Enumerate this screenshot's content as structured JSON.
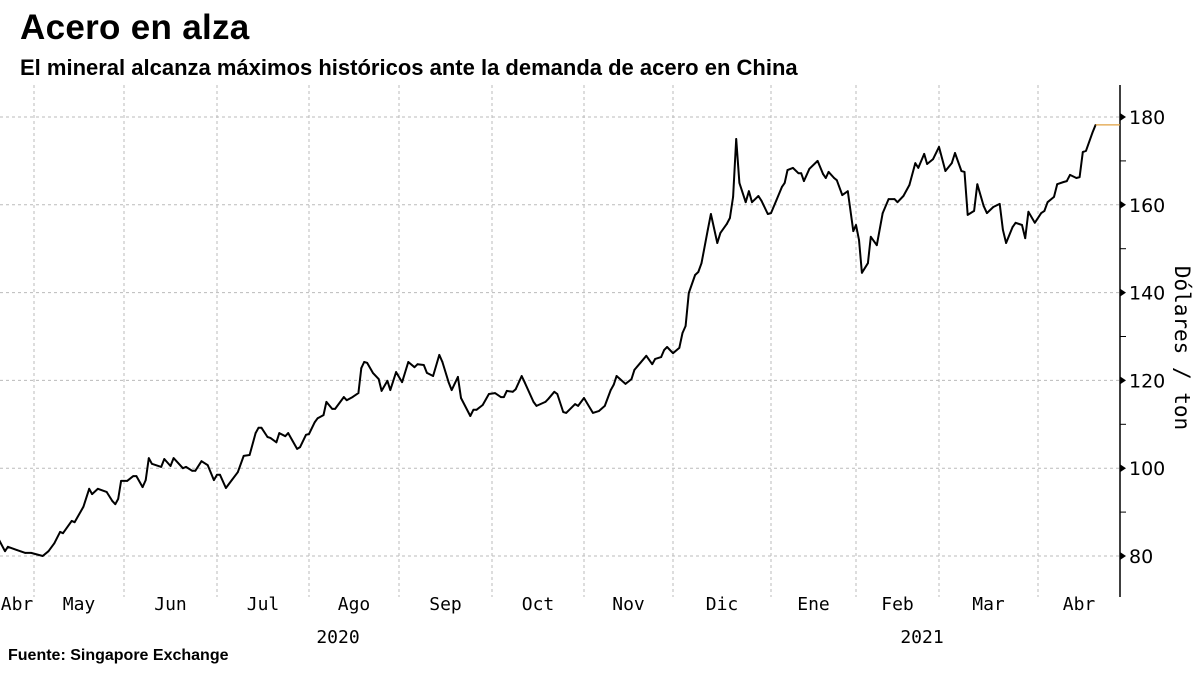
{
  "title": "Acero en alza",
  "subtitle": "El mineral alcanza máximos históricos ante la demanda de acero en China",
  "source": "Fuente: Singapore Exchange",
  "colors": {
    "line": "#000000",
    "last_value_marker": "#e0a040",
    "grid": "#bbbbbb"
  },
  "chart_data": {
    "type": "line",
    "title": "Acero en alza",
    "ylabel": "Dólares / ton",
    "xlabel": "",
    "y_axis_position": "right",
    "ylim": [
      70,
      190
    ],
    "yticks": [
      80,
      100,
      120,
      140,
      160,
      180
    ],
    "xtick_labels": [
      "Abr",
      "May",
      "Jun",
      "Jul",
      "Ago",
      "Sep",
      "Oct",
      "Nov",
      "Dic",
      "Ene",
      "Feb",
      "Mar",
      "Abr"
    ],
    "year_labels": [
      "2020",
      "2021"
    ],
    "grid": true,
    "series": [
      {
        "points": [
          [
            "2020-04-19",
            83.6
          ],
          [
            "2020-04-21",
            81.1
          ],
          [
            "2020-04-22",
            82.1
          ],
          [
            "2020-04-25",
            81.4
          ],
          [
            "2020-04-28",
            80.7
          ],
          [
            "2020-04-30",
            80.7
          ],
          [
            "2020-05-04",
            80.0
          ],
          [
            "2020-05-06",
            81.1
          ],
          [
            "2020-05-08",
            82.9
          ],
          [
            "2020-05-10",
            85.5
          ],
          [
            "2020-05-11",
            85.2
          ],
          [
            "2020-05-14",
            88.0
          ],
          [
            "2020-05-15",
            87.7
          ],
          [
            "2020-05-18",
            91.2
          ],
          [
            "2020-05-20",
            95.3
          ],
          [
            "2020-05-21",
            94.1
          ],
          [
            "2020-05-23",
            95.3
          ],
          [
            "2020-05-26",
            94.6
          ],
          [
            "2020-05-28",
            92.5
          ],
          [
            "2020-05-29",
            91.8
          ],
          [
            "2020-05-30",
            93.0
          ],
          [
            "2020-05-31",
            97.1
          ],
          [
            "2020-06-02",
            97.1
          ],
          [
            "2020-06-04",
            98.2
          ],
          [
            "2020-06-05",
            98.2
          ],
          [
            "2020-06-07",
            95.7
          ],
          [
            "2020-06-08",
            97.3
          ],
          [
            "2020-06-09",
            102.3
          ],
          [
            "2020-06-10",
            101.0
          ],
          [
            "2020-06-13",
            100.3
          ],
          [
            "2020-06-14",
            102.1
          ],
          [
            "2020-06-16",
            100.5
          ],
          [
            "2020-06-17",
            102.3
          ],
          [
            "2020-06-20",
            100.0
          ],
          [
            "2020-06-21",
            100.3
          ],
          [
            "2020-06-23",
            99.4
          ],
          [
            "2020-06-24",
            99.4
          ],
          [
            "2020-06-26",
            101.6
          ],
          [
            "2020-06-28",
            100.7
          ],
          [
            "2020-06-30",
            97.3
          ],
          [
            "2020-07-01",
            98.5
          ],
          [
            "2020-07-02",
            98.5
          ],
          [
            "2020-07-04",
            95.5
          ],
          [
            "2020-07-06",
            97.3
          ],
          [
            "2020-07-08",
            99.1
          ],
          [
            "2020-07-10",
            102.8
          ],
          [
            "2020-07-12",
            103.0
          ],
          [
            "2020-07-14",
            108.0
          ],
          [
            "2020-07-15",
            109.2
          ],
          [
            "2020-07-16",
            109.2
          ],
          [
            "2020-07-18",
            107.1
          ],
          [
            "2020-07-19",
            106.9
          ],
          [
            "2020-07-21",
            105.9
          ],
          [
            "2020-07-22",
            108.0
          ],
          [
            "2020-07-24",
            107.3
          ],
          [
            "2020-07-25",
            108.0
          ],
          [
            "2020-07-28",
            104.4
          ],
          [
            "2020-07-29",
            104.8
          ],
          [
            "2020-07-31",
            107.6
          ],
          [
            "2020-08-01",
            107.8
          ],
          [
            "2020-08-03",
            110.5
          ],
          [
            "2020-08-04",
            111.4
          ],
          [
            "2020-08-06",
            112.1
          ],
          [
            "2020-08-07",
            115.1
          ],
          [
            "2020-08-09",
            113.5
          ],
          [
            "2020-08-10",
            113.5
          ],
          [
            "2020-08-13",
            116.2
          ],
          [
            "2020-08-14",
            115.5
          ],
          [
            "2020-08-16",
            116.2
          ],
          [
            "2020-08-18",
            117.1
          ],
          [
            "2020-08-19",
            122.8
          ],
          [
            "2020-08-20",
            124.2
          ],
          [
            "2020-08-21",
            124.0
          ],
          [
            "2020-08-23",
            121.7
          ],
          [
            "2020-08-25",
            120.3
          ],
          [
            "2020-08-26",
            117.6
          ],
          [
            "2020-08-28",
            119.9
          ],
          [
            "2020-08-29",
            117.8
          ],
          [
            "2020-08-31",
            121.9
          ],
          [
            "2020-09-02",
            119.6
          ],
          [
            "2020-09-04",
            124.2
          ],
          [
            "2020-09-06",
            123.0
          ],
          [
            "2020-09-07",
            123.7
          ],
          [
            "2020-09-09",
            123.5
          ],
          [
            "2020-09-10",
            121.7
          ],
          [
            "2020-09-12",
            121.0
          ],
          [
            "2020-09-14",
            125.8
          ],
          [
            "2020-09-15",
            124.2
          ],
          [
            "2020-09-17",
            119.6
          ],
          [
            "2020-09-18",
            117.8
          ],
          [
            "2020-09-20",
            120.8
          ],
          [
            "2020-09-21",
            116.0
          ],
          [
            "2020-09-24",
            111.9
          ],
          [
            "2020-09-25",
            113.3
          ],
          [
            "2020-09-26",
            113.3
          ],
          [
            "2020-09-28",
            114.4
          ],
          [
            "2020-09-30",
            116.9
          ],
          [
            "2020-10-02",
            117.1
          ],
          [
            "2020-10-04",
            116.2
          ],
          [
            "2020-10-05",
            116.2
          ],
          [
            "2020-10-06",
            117.6
          ],
          [
            "2020-10-08",
            117.4
          ],
          [
            "2020-10-09",
            118.0
          ],
          [
            "2020-10-11",
            121.0
          ],
          [
            "2020-10-12",
            119.6
          ],
          [
            "2020-10-15",
            115.1
          ],
          [
            "2020-10-16",
            114.2
          ],
          [
            "2020-10-19",
            115.1
          ],
          [
            "2020-10-20",
            115.8
          ],
          [
            "2020-10-22",
            117.4
          ],
          [
            "2020-10-23",
            116.9
          ],
          [
            "2020-10-25",
            112.8
          ],
          [
            "2020-10-26",
            112.6
          ],
          [
            "2020-10-29",
            114.6
          ],
          [
            "2020-10-30",
            114.2
          ],
          [
            "2020-11-01",
            116.0
          ],
          [
            "2020-11-04",
            112.6
          ],
          [
            "2020-11-06",
            113.0
          ],
          [
            "2020-11-08",
            114.2
          ],
          [
            "2020-11-10",
            117.8
          ],
          [
            "2020-11-11",
            119.0
          ],
          [
            "2020-11-12",
            121.0
          ],
          [
            "2020-11-15",
            119.2
          ],
          [
            "2020-11-17",
            120.3
          ],
          [
            "2020-11-18",
            122.4
          ],
          [
            "2020-11-20",
            124.0
          ],
          [
            "2020-11-22",
            125.6
          ],
          [
            "2020-11-24",
            123.7
          ],
          [
            "2020-11-25",
            124.9
          ],
          [
            "2020-11-27",
            125.3
          ],
          [
            "2020-11-28",
            126.9
          ],
          [
            "2020-11-29",
            127.6
          ],
          [
            "2020-12-01",
            126.2
          ],
          [
            "2020-12-03",
            127.4
          ],
          [
            "2020-12-04",
            130.8
          ],
          [
            "2020-12-05",
            132.4
          ],
          [
            "2020-12-06",
            139.9
          ],
          [
            "2020-12-08",
            144.0
          ],
          [
            "2020-12-09",
            144.7
          ],
          [
            "2020-12-10",
            146.7
          ],
          [
            "2020-12-12",
            154.3
          ],
          [
            "2020-12-13",
            157.9
          ],
          [
            "2020-12-15",
            151.3
          ],
          [
            "2020-12-16",
            153.6
          ],
          [
            "2020-12-18",
            155.6
          ],
          [
            "2020-12-19",
            157.0
          ],
          [
            "2020-12-20",
            161.8
          ],
          [
            "2020-12-21",
            175.0
          ],
          [
            "2020-12-22",
            165.0
          ],
          [
            "2020-12-24",
            160.6
          ],
          [
            "2020-12-25",
            163.1
          ],
          [
            "2020-12-26",
            160.6
          ],
          [
            "2020-12-28",
            162.0
          ],
          [
            "2020-12-29",
            160.9
          ],
          [
            "2020-12-31",
            157.9
          ],
          [
            "2021-01-01",
            158.1
          ],
          [
            "2021-01-03",
            161.1
          ],
          [
            "2021-01-05",
            164.1
          ],
          [
            "2021-01-06",
            165.0
          ],
          [
            "2021-01-07",
            167.9
          ],
          [
            "2021-01-09",
            168.4
          ],
          [
            "2021-01-11",
            167.2
          ],
          [
            "2021-01-12",
            167.2
          ],
          [
            "2021-01-13",
            165.4
          ],
          [
            "2021-01-15",
            168.2
          ],
          [
            "2021-01-18",
            170.0
          ],
          [
            "2021-01-20",
            167.0
          ],
          [
            "2021-01-21",
            166.1
          ],
          [
            "2021-01-22",
            167.5
          ],
          [
            "2021-01-24",
            166.1
          ],
          [
            "2021-01-25",
            165.6
          ],
          [
            "2021-01-27",
            162.2
          ],
          [
            "2021-01-29",
            163.1
          ],
          [
            "2021-01-31",
            154.0
          ],
          [
            "2021-02-01",
            155.4
          ],
          [
            "2021-02-02",
            152.0
          ],
          [
            "2021-02-03",
            144.5
          ],
          [
            "2021-02-05",
            146.7
          ],
          [
            "2021-02-06",
            152.7
          ],
          [
            "2021-02-08",
            150.8
          ],
          [
            "2021-02-10",
            158.1
          ],
          [
            "2021-02-12",
            161.3
          ],
          [
            "2021-02-14",
            161.3
          ],
          [
            "2021-02-15",
            160.6
          ],
          [
            "2021-02-17",
            162.0
          ],
          [
            "2021-02-19",
            164.5
          ],
          [
            "2021-02-21",
            169.5
          ],
          [
            "2021-02-22",
            168.4
          ],
          [
            "2021-02-24",
            171.6
          ],
          [
            "2021-02-25",
            169.3
          ],
          [
            "2021-02-27",
            170.4
          ],
          [
            "2021-03-01",
            173.2
          ],
          [
            "2021-03-03",
            167.7
          ],
          [
            "2021-03-05",
            169.5
          ],
          [
            "2021-03-06",
            171.8
          ],
          [
            "2021-03-08",
            167.7
          ],
          [
            "2021-03-09",
            167.5
          ],
          [
            "2021-03-10",
            157.7
          ],
          [
            "2021-03-12",
            158.6
          ],
          [
            "2021-03-13",
            164.7
          ],
          [
            "2021-03-15",
            159.7
          ],
          [
            "2021-03-16",
            158.1
          ],
          [
            "2021-03-18",
            159.5
          ],
          [
            "2021-03-20",
            160.2
          ],
          [
            "2021-03-21",
            154.3
          ],
          [
            "2021-03-22",
            151.3
          ],
          [
            "2021-03-24",
            154.9
          ],
          [
            "2021-03-25",
            155.9
          ],
          [
            "2021-03-27",
            155.4
          ],
          [
            "2021-03-28",
            152.4
          ],
          [
            "2021-03-29",
            158.4
          ],
          [
            "2021-03-31",
            155.9
          ],
          [
            "2021-04-02",
            158.1
          ],
          [
            "2021-04-03",
            158.6
          ],
          [
            "2021-04-04",
            160.6
          ],
          [
            "2021-04-06",
            161.8
          ],
          [
            "2021-04-07",
            164.7
          ],
          [
            "2021-04-09",
            165.2
          ],
          [
            "2021-04-10",
            165.4
          ],
          [
            "2021-04-11",
            166.8
          ],
          [
            "2021-04-13",
            166.1
          ],
          [
            "2021-04-14",
            166.3
          ],
          [
            "2021-04-15",
            172.0
          ],
          [
            "2021-04-16",
            172.3
          ],
          [
            "2021-04-18",
            176.4
          ],
          [
            "2021-04-19",
            178.2
          ]
        ]
      }
    ]
  }
}
